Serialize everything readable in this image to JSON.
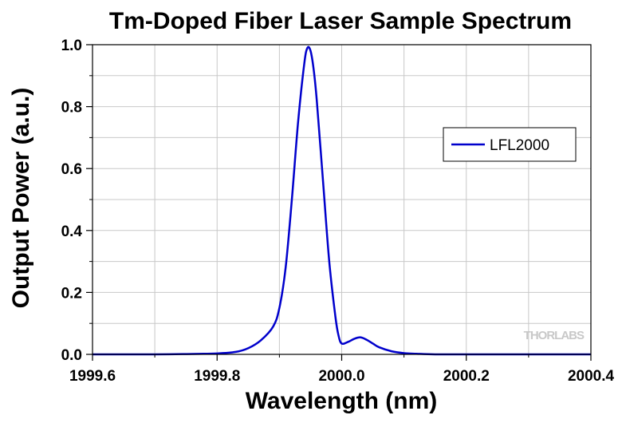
{
  "chart_data": {
    "type": "line",
    "title": "Tm-Doped Fiber Laser Sample Spectrum",
    "xlabel": "Wavelength (nm)",
    "ylabel": "Output Power (a.u.)",
    "xlim": [
      1999.6,
      2000.4
    ],
    "ylim": [
      0.0,
      1.0
    ],
    "xticks": [
      1999.6,
      1999.8,
      2000.0,
      2000.2,
      2000.4
    ],
    "xtick_labels": [
      "1999.6",
      "1999.8",
      "2000.0",
      "2000.2",
      "2000.4"
    ],
    "yticks": [
      0.0,
      0.2,
      0.4,
      0.6,
      0.8,
      1.0
    ],
    "ytick_labels": [
      "0.0",
      "0.2",
      "0.4",
      "0.6",
      "0.8",
      "1.0"
    ],
    "grid": true,
    "legend_position": "top-right",
    "watermark": "THORLABS",
    "series": [
      {
        "name": "LFL2000",
        "color": "#0000cc",
        "x": [
          1999.6,
          1999.7,
          1999.75,
          1999.8,
          1999.83,
          1999.85,
          1999.87,
          1999.89,
          1999.9,
          1999.91,
          1999.92,
          1999.93,
          1999.94,
          1999.945,
          1999.95,
          1999.955,
          1999.96,
          1999.97,
          1999.98,
          1999.99,
          1999.995,
          2000.0,
          2000.01,
          2000.02,
          2000.03,
          2000.04,
          2000.05,
          2000.06,
          2000.08,
          2000.1,
          2000.12,
          2000.15,
          2000.2,
          2000.4
        ],
        "y": [
          0.0,
          0.0,
          0.001,
          0.003,
          0.008,
          0.02,
          0.045,
          0.09,
          0.15,
          0.28,
          0.5,
          0.75,
          0.94,
          0.99,
          0.98,
          0.92,
          0.82,
          0.56,
          0.3,
          0.12,
          0.06,
          0.035,
          0.04,
          0.05,
          0.055,
          0.047,
          0.035,
          0.023,
          0.01,
          0.004,
          0.002,
          0.0,
          0.0,
          0.0
        ]
      }
    ]
  }
}
